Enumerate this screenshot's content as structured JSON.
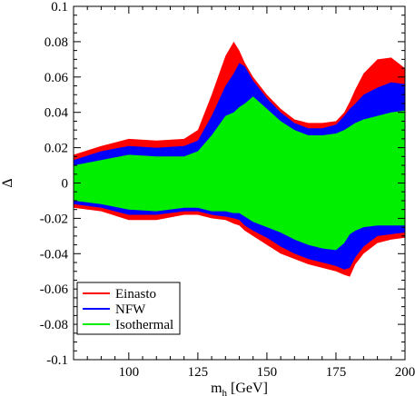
{
  "chart_data": {
    "type": "area",
    "title": "",
    "xlabel": "m",
    "xlabel_sub": "h",
    "xlabel_unit": " [GeV]",
    "ylabel": "Δ",
    "xlim": [
      80,
      200
    ],
    "ylim": [
      -0.1,
      0.1
    ],
    "x_ticks": [
      100,
      125,
      150,
      175,
      200
    ],
    "y_ticks": [
      -0.1,
      -0.08,
      -0.06,
      -0.04,
      -0.02,
      0,
      0.02,
      0.04,
      0.06,
      0.08,
      0.1
    ],
    "x_tick_labels": [
      "100",
      "125",
      "150",
      "175",
      "200"
    ],
    "y_tick_labels": [
      "-0.1",
      "-0.08",
      "-0.06",
      "-0.04",
      "-0.02",
      "0",
      "0.02",
      "0.04",
      "0.06",
      "0.08",
      "0.1"
    ],
    "grid": false,
    "legend_position": "bottom-left",
    "series": [
      {
        "name": "Einasto",
        "color": "#ff0000",
        "x": [
          80,
          90,
          100,
          110,
          120,
          125,
          130,
          135,
          138,
          140,
          142,
          145,
          150,
          155,
          160,
          165,
          170,
          175,
          178,
          180,
          182,
          185,
          190,
          195,
          200
        ],
        "upper": [
          0.016,
          0.021,
          0.025,
          0.024,
          0.025,
          0.03,
          0.05,
          0.072,
          0.08,
          0.075,
          0.068,
          0.06,
          0.05,
          0.042,
          0.036,
          0.034,
          0.034,
          0.035,
          0.04,
          0.046,
          0.053,
          0.062,
          0.07,
          0.071,
          0.065
        ],
        "lower": [
          -0.014,
          -0.016,
          -0.021,
          -0.021,
          -0.018,
          -0.018,
          -0.02,
          -0.021,
          -0.023,
          -0.024,
          -0.027,
          -0.03,
          -0.035,
          -0.04,
          -0.043,
          -0.046,
          -0.048,
          -0.05,
          -0.052,
          -0.053,
          -0.046,
          -0.04,
          -0.034,
          -0.032,
          -0.031
        ]
      },
      {
        "name": "NFW",
        "color": "#0000ff",
        "x": [
          80,
          90,
          100,
          110,
          120,
          125,
          130,
          135,
          138,
          140,
          142,
          145,
          150,
          155,
          160,
          165,
          170,
          175,
          178,
          180,
          182,
          185,
          190,
          195,
          200
        ],
        "upper": [
          0.013,
          0.018,
          0.021,
          0.02,
          0.021,
          0.024,
          0.038,
          0.055,
          0.062,
          0.068,
          0.066,
          0.058,
          0.048,
          0.04,
          0.034,
          0.031,
          0.031,
          0.033,
          0.038,
          0.042,
          0.045,
          0.05,
          0.054,
          0.057,
          0.056
        ],
        "lower": [
          -0.012,
          -0.014,
          -0.018,
          -0.018,
          -0.016,
          -0.016,
          -0.018,
          -0.019,
          -0.02,
          -0.021,
          -0.024,
          -0.027,
          -0.031,
          -0.036,
          -0.04,
          -0.043,
          -0.045,
          -0.047,
          -0.049,
          -0.048,
          -0.042,
          -0.036,
          -0.03,
          -0.029,
          -0.028
        ]
      },
      {
        "name": "Isothermal",
        "color": "#00ee00",
        "x": [
          80,
          90,
          100,
          110,
          120,
          125,
          130,
          135,
          138,
          140,
          142,
          145,
          150,
          155,
          160,
          165,
          170,
          175,
          178,
          180,
          182,
          185,
          190,
          195,
          200
        ],
        "upper": [
          0.01,
          0.013,
          0.016,
          0.015,
          0.015,
          0.018,
          0.027,
          0.038,
          0.04,
          0.043,
          0.045,
          0.049,
          0.042,
          0.035,
          0.03,
          0.027,
          0.027,
          0.028,
          0.03,
          0.032,
          0.034,
          0.036,
          0.038,
          0.04,
          0.041
        ],
        "lower": [
          -0.01,
          -0.012,
          -0.015,
          -0.016,
          -0.014,
          -0.014,
          -0.016,
          -0.016,
          -0.017,
          -0.017,
          -0.019,
          -0.022,
          -0.025,
          -0.028,
          -0.032,
          -0.035,
          -0.037,
          -0.038,
          -0.034,
          -0.029,
          -0.027,
          -0.025,
          -0.024,
          -0.024,
          -0.024
        ]
      }
    ]
  }
}
